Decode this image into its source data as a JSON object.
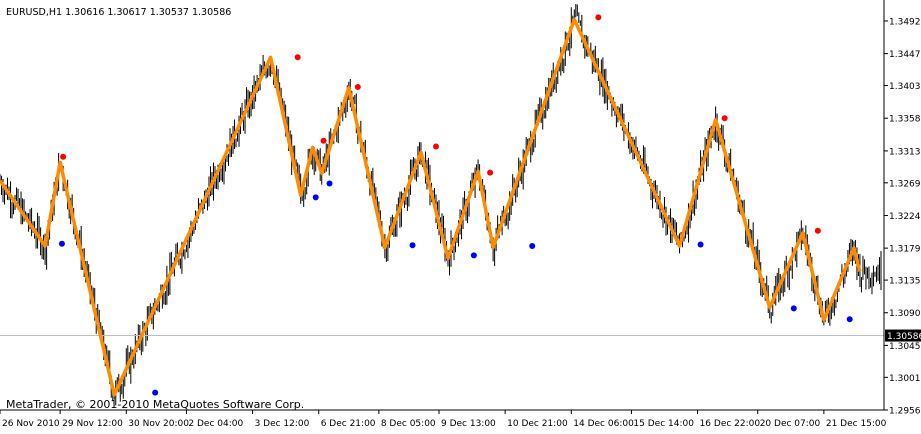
{
  "window": {
    "symbol_line": "EURUSD,H1  1.30616  1.30617  1.30537  1.30586",
    "copyright": "MetaTrader, © 2001-2010 MetaQuotes Software Corp."
  },
  "colors": {
    "background": "#ffffff",
    "bars": "#000000",
    "zigzag": "#ff8c00",
    "high_marker": "#ff0000",
    "low_marker": "#0000ff",
    "current_price_line": "#c0c0c0",
    "current_price_tag_bg": "#000000",
    "current_price_tag_text": "#ffffff"
  },
  "chart_data": {
    "type": "line",
    "instrument": "EURUSD",
    "timeframe": "H1",
    "ohlc_header": {
      "open": 1.30616,
      "high": 1.30617,
      "low": 1.30537,
      "close": 1.30586
    },
    "current_price": 1.30586,
    "current_price_label": "1.30586",
    "x_range": [
      0,
      147
    ],
    "y_range": [
      1.2956,
      1.3514
    ],
    "grid": false,
    "y_ticks": [
      1.3492,
      1.3447,
      1.3403,
      1.3358,
      1.3313,
      1.3269,
      1.3224,
      1.3179,
      1.3135,
      1.309,
      1.3045,
      1.3001,
      1.2956
    ],
    "y_tick_labels": [
      "1.34920",
      "1.34470",
      "1.34030",
      "1.33580",
      "1.33130",
      "1.32690",
      "1.32240",
      "1.31790",
      "1.31350",
      "1.30900",
      "1.30450",
      "1.30010",
      "1.29560"
    ],
    "x_ticks": [
      {
        "x": 0,
        "label": "26 Nov 2010"
      },
      {
        "x": 10,
        "label": "29 Nov 12:00"
      },
      {
        "x": 21,
        "label": "30 Nov 20:00"
      },
      {
        "x": 31,
        "label": "2 Dec 04:00"
      },
      {
        "x": 42,
        "label": "3 Dec 12:00"
      },
      {
        "x": 53,
        "label": "6 Dec 21:00"
      },
      {
        "x": 63,
        "label": "8 Dec 05:00"
      },
      {
        "x": 73,
        "label": "9 Dec 13:00"
      },
      {
        "x": 84,
        "label": "10 Dec 21:00"
      },
      {
        "x": 95,
        "label": "14 Dec 06:00"
      },
      {
        "x": 105,
        "label": "15 Dec 14:00"
      },
      {
        "x": 116,
        "label": "16 Dec 22:00"
      },
      {
        "x": 126,
        "label": "20 Dec 07:00"
      },
      {
        "x": 137,
        "label": "21 Dec 15:00"
      }
    ],
    "zigzag": [
      {
        "x": 0,
        "y": 1.3272
      },
      {
        "x": 7.5,
        "y": 1.3182
      },
      {
        "x": 10,
        "y": 1.3297
      },
      {
        "x": 19,
        "y": 1.2977
      },
      {
        "x": 45,
        "y": 1.3442
      },
      {
        "x": 50,
        "y": 1.3252
      },
      {
        "x": 52,
        "y": 1.3318
      },
      {
        "x": 53.5,
        "y": 1.3282
      },
      {
        "x": 58,
        "y": 1.34
      },
      {
        "x": 64,
        "y": 1.318
      },
      {
        "x": 70,
        "y": 1.3311
      },
      {
        "x": 74.5,
        "y": 1.3165
      },
      {
        "x": 79.5,
        "y": 1.3285
      },
      {
        "x": 82,
        "y": 1.318
      },
      {
        "x": 95.5,
        "y": 1.3494
      },
      {
        "x": 113,
        "y": 1.3182
      },
      {
        "x": 119,
        "y": 1.3356
      },
      {
        "x": 128,
        "y": 1.3097
      },
      {
        "x": 133.5,
        "y": 1.32
      },
      {
        "x": 137,
        "y": 1.308
      },
      {
        "x": 142,
        "y": 1.3179
      },
      {
        "x": 143,
        "y": 1.3147
      }
    ],
    "high_markers": [
      {
        "x": 10.5,
        "y": 1.3305
      },
      {
        "x": 49.5,
        "y": 1.3442
      },
      {
        "x": 53.8,
        "y": 1.3327
      },
      {
        "x": 59.5,
        "y": 1.3401
      },
      {
        "x": 72.5,
        "y": 1.3319
      },
      {
        "x": 81.5,
        "y": 1.3283
      },
      {
        "x": 99.5,
        "y": 1.3497
      },
      {
        "x": 120.5,
        "y": 1.3358
      },
      {
        "x": 136,
        "y": 1.3203
      }
    ],
    "low_markers": [
      {
        "x": 10.3,
        "y": 1.3185
      },
      {
        "x": 25.8,
        "y": 1.298
      },
      {
        "x": 52.5,
        "y": 1.3249
      },
      {
        "x": 54.8,
        "y": 1.3268
      },
      {
        "x": 68.6,
        "y": 1.3183
      },
      {
        "x": 78.8,
        "y": 1.3169
      },
      {
        "x": 88.5,
        "y": 1.3182
      },
      {
        "x": 116.5,
        "y": 1.3184
      },
      {
        "x": 132,
        "y": 1.3096
      },
      {
        "x": 141.3,
        "y": 1.3081
      }
    ]
  }
}
